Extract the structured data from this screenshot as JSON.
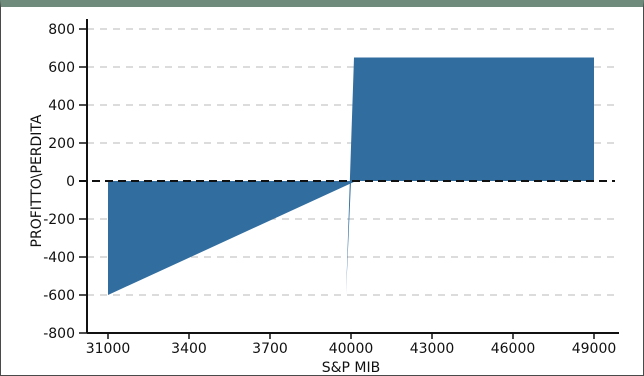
{
  "chart_data": {
    "type": "area",
    "title": "",
    "xlabel": "S&P MIB",
    "ylabel": "PROFITTO\\PERDITA",
    "ylim": [
      -800,
      800
    ],
    "y_ticks": [
      800,
      600,
      400,
      200,
      0,
      -200,
      -400,
      -600,
      -800
    ],
    "x_tick_labels": [
      "31000",
      "3400",
      "3700",
      "40000",
      "43000",
      "46000",
      "49000"
    ],
    "grid": "horizontal dashed",
    "series": [
      {
        "color": "#316d9f",
        "points": [
          {
            "x": "31000",
            "y": -600
          },
          {
            "x": "31000",
            "y": 0
          },
          {
            "x": "40000",
            "y": 0
          },
          {
            "x": "40000",
            "y": -600
          },
          {
            "x": "40000",
            "y": 650
          },
          {
            "x": "49000",
            "y": 650
          }
        ]
      }
    ]
  }
}
